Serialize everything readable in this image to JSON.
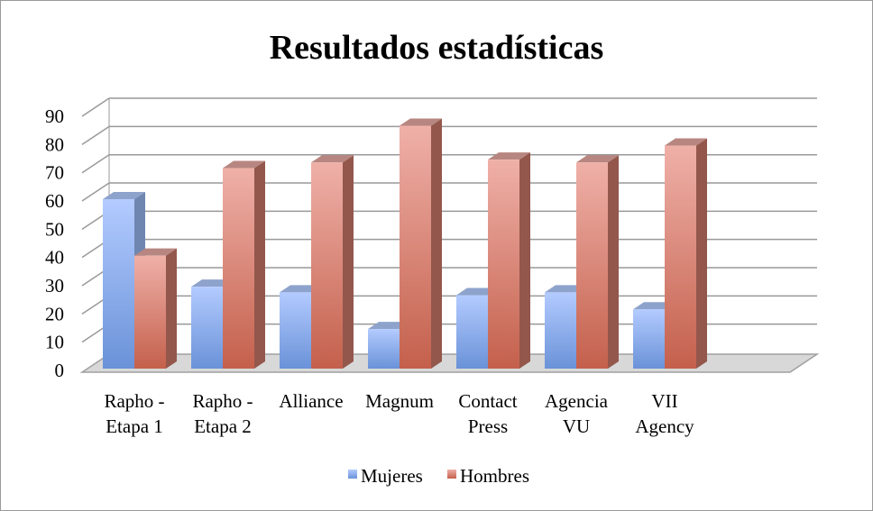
{
  "chart_data": {
    "type": "bar",
    "title": "Resultados estadísticas",
    "categories": [
      [
        "Rapho -",
        "Etapa 1"
      ],
      [
        "Rapho -",
        "Etapa 2"
      ],
      [
        "Alliance"
      ],
      [
        "Magnum"
      ],
      [
        "Contact",
        "Press"
      ],
      [
        "Agencia",
        "VU"
      ],
      [
        "VII",
        "Agency"
      ]
    ],
    "series": [
      {
        "name": "Mujeres",
        "color": "#7a9fe0",
        "values": [
          60,
          29,
          27,
          14,
          26,
          27,
          21
        ]
      },
      {
        "name": "Hombres",
        "color": "#d27463",
        "values": [
          40,
          71,
          73,
          86,
          74,
          73,
          79
        ]
      }
    ],
    "yticks": [
      "0",
      "10",
      "20",
      "30",
      "40",
      "50",
      "60",
      "70",
      "80",
      "90"
    ],
    "ylim": [
      0,
      90
    ],
    "xlabel": "",
    "ylabel": "",
    "grid": true,
    "legend": "bottom"
  }
}
